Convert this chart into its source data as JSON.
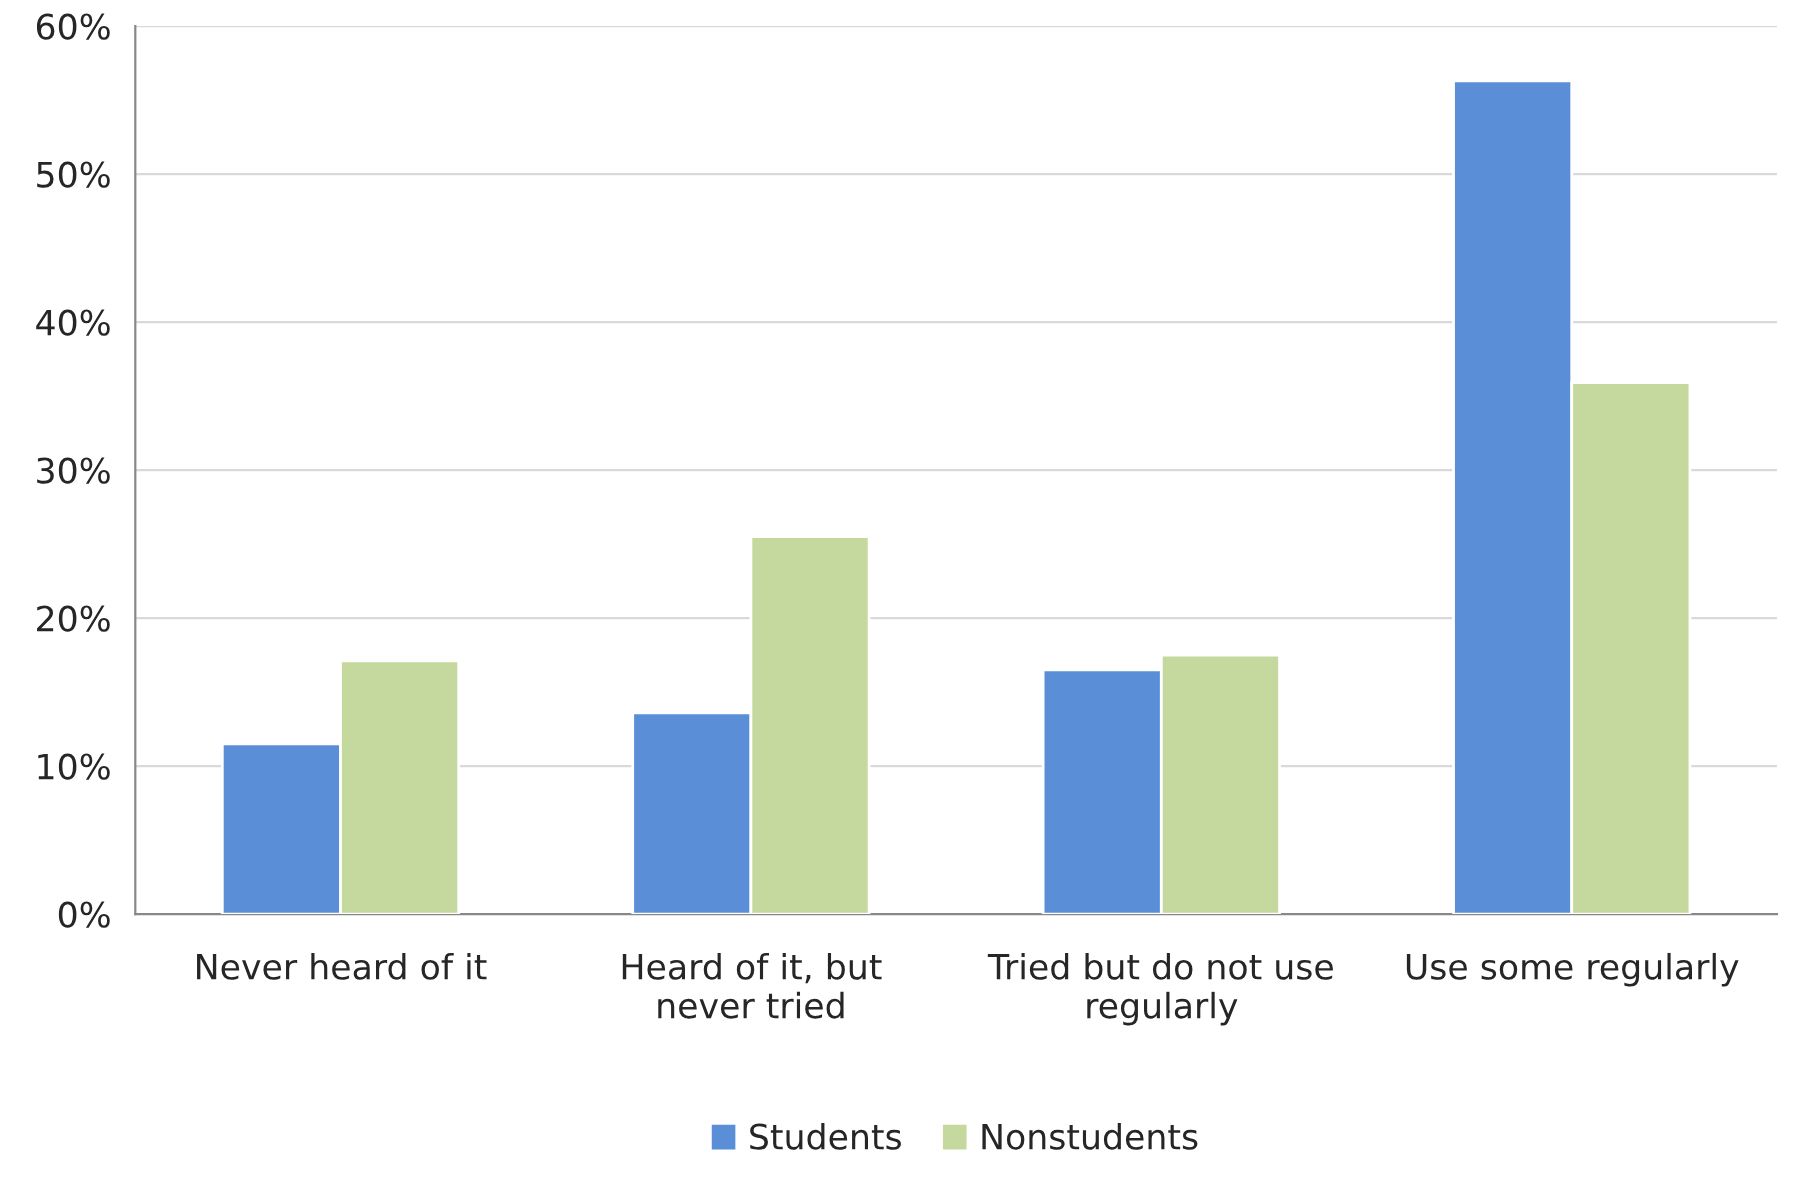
{
  "chart_data": {
    "type": "bar",
    "categories": [
      "Never heard of it",
      "Heard of it, but\nnever tried",
      "Tried but do not use\nregularly",
      "Use some regularly"
    ],
    "series": [
      {
        "name": "Students",
        "color": "#5a8fd8",
        "values": [
          11.5,
          13.6,
          16.5,
          56.3
        ]
      },
      {
        "name": "Nonstudents",
        "color": "#c5d89d",
        "values": [
          17.1,
          25.5,
          17.5,
          35.9
        ]
      }
    ],
    "ylim": [
      0,
      60
    ],
    "yticks": [
      {
        "value": 0,
        "label": "0%"
      },
      {
        "value": 10,
        "label": "10%"
      },
      {
        "value": 20,
        "label": "20%"
      },
      {
        "value": 30,
        "label": "30%"
      },
      {
        "value": 40,
        "label": "40%"
      },
      {
        "value": 50,
        "label": "50%"
      },
      {
        "value": 60,
        "label": "60%"
      }
    ],
    "grid": "y",
    "legend": "bottom"
  }
}
